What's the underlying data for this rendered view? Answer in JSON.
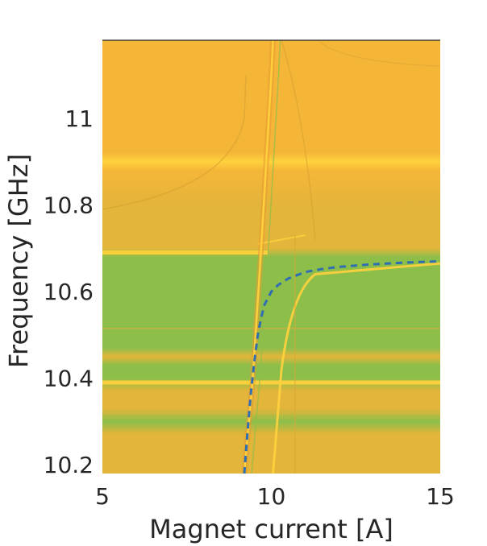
{
  "chart_data": {
    "type": "heatmap",
    "title": "",
    "xlabel": "Magnet current [A]",
    "ylabel": "Frequency [GHz]",
    "xlim": [
      5,
      15
    ],
    "ylim": [
      10.18,
      11.18
    ],
    "x_ticks": [
      5,
      10,
      15
    ],
    "x_tick_labels": [
      "5",
      "10",
      "15"
    ],
    "y_ticks": [
      10.2,
      10.4,
      10.6,
      10.8,
      11.0
    ],
    "y_tick_labels": [
      "10.2",
      "10.4",
      "10.6",
      "10.8",
      "11"
    ],
    "grid": false,
    "colormap": {
      "high": "#f5b638",
      "mid": "#e3b53a",
      "low": "#8dbe4a",
      "peak": "#ffd23d"
    },
    "resonances": {
      "horizontal_modes_ghz": [
        10.69,
        10.39,
        10.515,
        10.45,
        10.275,
        10.32
      ],
      "tunable_line": {
        "description_points": [
          [
            9.2,
            10.18
          ],
          [
            9.45,
            10.4
          ],
          [
            9.7,
            10.7
          ],
          [
            10.0,
            11.1
          ],
          [
            10.05,
            11.18
          ]
        ]
      }
    },
    "series": [
      {
        "style": "dashed",
        "color": "#2f6eb1",
        "x": [
          9.2,
          9.3,
          9.4,
          9.5,
          9.6,
          9.7,
          9.8,
          10.0,
          10.2,
          10.5,
          11.0,
          11.5,
          12.0,
          13.0,
          14.0,
          15.0
        ],
        "y": [
          10.18,
          10.28,
          10.37,
          10.44,
          10.5,
          10.54,
          10.57,
          10.6,
          10.615,
          10.63,
          10.645,
          10.652,
          10.657,
          10.663,
          10.667,
          10.67
        ]
      }
    ]
  }
}
